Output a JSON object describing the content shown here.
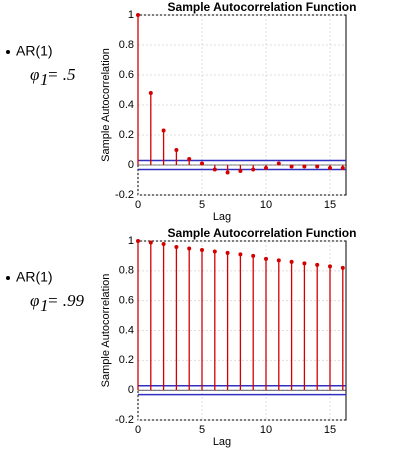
{
  "bullets": [
    {
      "label": "AR(1)",
      "symbol": "φ",
      "subscript": "1",
      "value": "= .5"
    },
    {
      "label": "AR(1)",
      "symbol": "φ",
      "subscript": "1",
      "value": "= .99"
    }
  ],
  "chart_data": [
    {
      "type": "stem",
      "title": "Sample Autocorrelation Function",
      "x_label": "Lag",
      "y_label": "Sample Autocorrelation",
      "x": [
        0,
        1,
        2,
        3,
        4,
        5,
        6,
        7,
        8,
        9,
        10,
        11,
        12,
        13,
        14,
        15,
        16
      ],
      "values": [
        1,
        0.48,
        0.23,
        0.1,
        0.04,
        0.01,
        -0.03,
        -0.05,
        -0.04,
        -0.03,
        -0.02,
        0.01,
        -0.01,
        -0.01,
        -0.01,
        -0.02,
        -0.02
      ],
      "color": "#d40000",
      "bounds": [
        0.03,
        -0.03
      ],
      "bound_color": "#3030c0",
      "xlim": [
        0,
        16.25
      ],
      "xticks": [
        0,
        5,
        10,
        15
      ],
      "ylim": [
        -0.2,
        1
      ],
      "yticks": [
        -0.2,
        0,
        0.2,
        0.4,
        0.6,
        0.8,
        1
      ],
      "grid": true
    },
    {
      "type": "stem",
      "title": "Sample Autocorrelation Function",
      "x_label": "Lag",
      "y_label": "Sample Autocorrelation",
      "x": [
        0,
        1,
        2,
        3,
        4,
        5,
        6,
        7,
        8,
        9,
        10,
        11,
        12,
        13,
        14,
        15,
        16
      ],
      "values": [
        1,
        0.99,
        0.98,
        0.96,
        0.95,
        0.94,
        0.93,
        0.92,
        0.91,
        0.9,
        0.88,
        0.87,
        0.86,
        0.85,
        0.84,
        0.83,
        0.82
      ],
      "color": "#d40000",
      "bounds": [
        0.03,
        -0.03
      ],
      "bound_color": "#3030c0",
      "xlim": [
        0,
        16.25
      ],
      "xticks": [
        0,
        5,
        10,
        15
      ],
      "ylim": [
        -0.2,
        1
      ],
      "yticks": [
        -0.2,
        0,
        0.2,
        0.4,
        0.6,
        0.8,
        1
      ],
      "grid": true
    }
  ]
}
